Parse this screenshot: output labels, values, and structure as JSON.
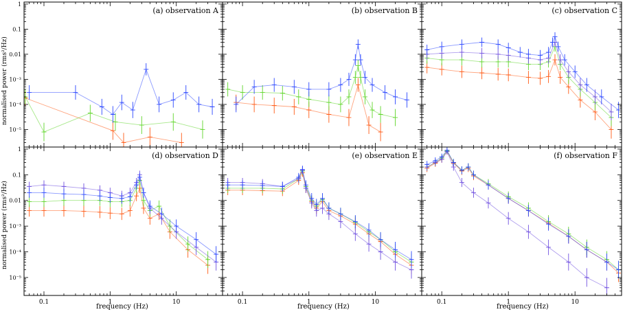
{
  "figure": {
    "ylabel": "normalised power (rms²/Hz)",
    "xlabel": "frequency (Hz)",
    "x_ticks": [
      "0.1",
      "1",
      "10"
    ],
    "y_ticks": [
      "1",
      "0.1",
      "0.01",
      "10⁻³",
      "10⁻⁴",
      "10⁻⁵"
    ],
    "colors": {
      "blue": "#2b47ff",
      "purple": "#7050e0",
      "green": "#5fd62a",
      "orange": "#ff5a14",
      "axis": "#000000"
    }
  },
  "chart_data": [
    {
      "type": "scatter",
      "title": "(a) observation A",
      "xscale": "log",
      "yscale": "log",
      "xlim": [
        0.05,
        50
      ],
      "ylim": [
        2e-06,
        1.2
      ],
      "series": [
        {
          "name": "blue",
          "x": [
            0.06,
            0.3,
            0.75,
            1.1,
            1.5,
            2.2,
            3.5,
            5.5,
            9,
            14,
            22,
            35
          ],
          "y": [
            0.0003,
            0.0003,
            8e-05,
            4e-05,
            0.00012,
            6e-05,
            0.0025,
            0.0001,
            0.00015,
            0.0003,
            0.0001,
            8e-05
          ]
        },
        {
          "name": "green",
          "x": [
            0.052,
            0.1,
            0.5,
            1.2,
            3,
            9,
            25
          ],
          "y": [
            0.0002,
            8e-06,
            4.5e-05,
            2e-05,
            1.5e-05,
            2e-05,
            1e-05
          ]
        },
        {
          "name": "orange",
          "x": [
            0.052,
            1.1,
            1.6,
            4,
            12
          ],
          "y": [
            0.00018,
            9e-06,
            3e-06,
            5e-06,
            3e-06
          ]
        }
      ]
    },
    {
      "type": "scatter",
      "title": "(b) observation B",
      "xscale": "log",
      "yscale": "log",
      "xlim": [
        0.05,
        50
      ],
      "ylim": [
        2e-06,
        1.2
      ],
      "series": [
        {
          "name": "blue",
          "x": [
            0.08,
            0.15,
            0.3,
            0.6,
            1,
            2,
            3,
            4,
            5,
            5.5,
            6,
            7,
            9,
            14,
            20,
            30
          ],
          "y": [
            0.0001,
            0.0005,
            0.0006,
            0.0005,
            0.0004,
            0.0004,
            0.0006,
            0.001,
            0.006,
            0.025,
            0.006,
            0.0012,
            0.0006,
            0.0003,
            0.0002,
            0.00015
          ]
        },
        {
          "name": "green",
          "x": [
            0.06,
            0.1,
            0.2,
            0.4,
            0.7,
            1,
            2,
            3,
            4,
            5,
            5.5,
            6,
            7,
            9,
            12,
            20
          ],
          "y": [
            0.0004,
            0.0003,
            0.0003,
            0.00028,
            0.0002,
            0.00016,
            0.00012,
            0.0001,
            0.0002,
            0.0012,
            0.0035,
            0.0012,
            0.0002,
            6e-05,
            4e-05,
            3e-05
          ]
        },
        {
          "name": "orange",
          "x": [
            0.08,
            0.15,
            0.3,
            0.6,
            1,
            2,
            4,
            5.5,
            8,
            12
          ],
          "y": [
            0.00012,
            0.0001,
            9e-05,
            8e-05,
            6e-05,
            4e-05,
            3e-05,
            0.0006,
            1.5e-05,
            8e-06
          ]
        }
      ]
    },
    {
      "type": "scatter",
      "title": "(c) observation C",
      "xscale": "log",
      "yscale": "log",
      "xlim": [
        0.05,
        50
      ],
      "ylim": [
        2e-06,
        1.2
      ],
      "series": [
        {
          "name": "blue",
          "x": [
            0.06,
            0.1,
            0.2,
            0.4,
            0.7,
            1,
            1.5,
            2,
            3,
            4,
            4.6,
            5,
            5.6,
            7,
            10,
            15,
            25,
            45
          ],
          "y": [
            0.015,
            0.02,
            0.025,
            0.03,
            0.025,
            0.018,
            0.012,
            0.01,
            0.009,
            0.012,
            0.03,
            0.05,
            0.02,
            0.006,
            0.002,
            0.0006,
            0.0002,
            6e-05
          ]
        },
        {
          "name": "purple",
          "x": [
            0.06,
            0.1,
            0.2,
            0.4,
            0.7,
            1,
            2,
            3,
            4,
            5,
            6,
            8,
            12,
            20,
            35
          ],
          "y": [
            0.01,
            0.011,
            0.012,
            0.011,
            0.01,
            0.009,
            0.007,
            0.006,
            0.007,
            0.03,
            0.006,
            0.002,
            0.0006,
            0.0002,
            5e-05
          ]
        },
        {
          "name": "green",
          "x": [
            0.06,
            0.1,
            0.2,
            0.4,
            0.7,
            1,
            2,
            3,
            4,
            5,
            6,
            8,
            12,
            20,
            35
          ],
          "y": [
            0.007,
            0.006,
            0.006,
            0.005,
            0.005,
            0.005,
            0.004,
            0.004,
            0.005,
            0.02,
            0.004,
            0.0012,
            0.0004,
            0.00012,
            3e-05
          ]
        },
        {
          "name": "orange",
          "x": [
            0.06,
            0.1,
            0.2,
            0.4,
            0.7,
            1,
            2,
            3,
            4,
            5,
            6,
            8,
            12,
            20,
            35
          ],
          "y": [
            0.003,
            0.0025,
            0.002,
            0.0018,
            0.0016,
            0.0015,
            0.0012,
            0.0011,
            0.0013,
            0.006,
            0.0012,
            0.0005,
            0.00015,
            5e-05,
            1e-05
          ]
        }
      ]
    },
    {
      "type": "scatter",
      "title": "(d) observation D",
      "xscale": "log",
      "yscale": "log",
      "xlim": [
        0.05,
        50
      ],
      "ylim": [
        2e-06,
        1.2
      ],
      "series": [
        {
          "name": "purple",
          "x": [
            0.06,
            0.1,
            0.2,
            0.4,
            0.7,
            1,
            1.5,
            2,
            2.5,
            2.8,
            3.2,
            4,
            6,
            10,
            20,
            40
          ],
          "y": [
            0.035,
            0.04,
            0.035,
            0.03,
            0.025,
            0.02,
            0.015,
            0.02,
            0.05,
            0.1,
            0.02,
            0.005,
            0.002,
            0.0006,
            0.00015,
            4e-05
          ]
        },
        {
          "name": "blue",
          "x": [
            0.06,
            0.1,
            0.2,
            0.4,
            0.7,
            1,
            1.5,
            2,
            2.5,
            2.8,
            3.2,
            4,
            6,
            10,
            20,
            40
          ],
          "y": [
            0.02,
            0.02,
            0.018,
            0.017,
            0.015,
            0.013,
            0.012,
            0.014,
            0.04,
            0.08,
            0.02,
            0.006,
            0.003,
            0.001,
            0.0003,
            8e-05
          ]
        },
        {
          "name": "green",
          "x": [
            0.06,
            0.1,
            0.2,
            0.4,
            0.7,
            1,
            1.5,
            2,
            2.5,
            2.8,
            3.2,
            4,
            5.5,
            8,
            15,
            30
          ],
          "y": [
            0.009,
            0.009,
            0.01,
            0.01,
            0.01,
            0.009,
            0.009,
            0.01,
            0.03,
            0.06,
            0.01,
            0.004,
            0.006,
            0.001,
            0.0002,
            5e-05
          ]
        },
        {
          "name": "orange",
          "x": [
            0.06,
            0.1,
            0.2,
            0.4,
            0.7,
            1,
            1.5,
            2,
            2.5,
            2.8,
            3.2,
            4,
            5.5,
            8,
            15,
            30
          ],
          "y": [
            0.004,
            0.004,
            0.004,
            0.0038,
            0.0035,
            0.0032,
            0.003,
            0.004,
            0.015,
            0.03,
            0.005,
            0.002,
            0.003,
            0.0006,
            0.00012,
            3e-05
          ]
        }
      ]
    },
    {
      "type": "scatter",
      "title": "(e) observation E",
      "xscale": "log",
      "yscale": "log",
      "xlim": [
        0.05,
        50
      ],
      "ylim": [
        2e-06,
        1.2
      ],
      "series": [
        {
          "name": "purple",
          "x": [
            0.06,
            0.1,
            0.2,
            0.4,
            0.7,
            0.8,
            0.9,
            1.1,
            1.3,
            1.6,
            2,
            3,
            5,
            8,
            12,
            20,
            35
          ],
          "y": [
            0.05,
            0.05,
            0.045,
            0.035,
            0.07,
            0.15,
            0.03,
            0.008,
            0.004,
            0.005,
            0.003,
            0.0015,
            0.0005,
            0.0002,
            0.0001,
            4e-05,
            2e-05
          ]
        },
        {
          "name": "blue",
          "x": [
            0.06,
            0.1,
            0.2,
            0.4,
            0.7,
            0.8,
            0.9,
            1.1,
            1.3,
            1.6,
            2,
            3,
            5,
            8,
            12,
            20,
            35
          ],
          "y": [
            0.04,
            0.04,
            0.038,
            0.035,
            0.08,
            0.16,
            0.04,
            0.012,
            0.007,
            0.012,
            0.005,
            0.003,
            0.0015,
            0.0007,
            0.0003,
            0.00012,
            5e-05
          ]
        },
        {
          "name": "green",
          "x": [
            0.06,
            0.1,
            0.2,
            0.4,
            0.7,
            0.8,
            0.9,
            1.1,
            1.3,
            1.6,
            2,
            3,
            5,
            8,
            12,
            20,
            35
          ],
          "y": [
            0.03,
            0.03,
            0.03,
            0.028,
            0.07,
            0.14,
            0.035,
            0.01,
            0.006,
            0.011,
            0.005,
            0.003,
            0.0014,
            0.0006,
            0.0003,
            0.0001,
            4e-05
          ]
        },
        {
          "name": "orange",
          "x": [
            0.06,
            0.1,
            0.2,
            0.4,
            0.7,
            0.8,
            0.9,
            1.1,
            1.3,
            1.6,
            2,
            3,
            5,
            8,
            12,
            20,
            35
          ],
          "y": [
            0.025,
            0.025,
            0.024,
            0.023,
            0.06,
            0.12,
            0.03,
            0.009,
            0.005,
            0.009,
            0.004,
            0.0025,
            0.0012,
            0.0005,
            0.00025,
            8e-05,
            3e-05
          ]
        }
      ]
    },
    {
      "type": "scatter",
      "title": "(f) observation F",
      "xscale": "log",
      "yscale": "log",
      "xlim": [
        0.05,
        50
      ],
      "ylim": [
        2e-06,
        1.2
      ],
      "series": [
        {
          "name": "purple",
          "x": [
            0.06,
            0.08,
            0.1,
            0.12,
            0.15,
            0.2,
            0.3,
            0.5,
            1,
            2,
            4,
            8,
            15,
            30
          ],
          "y": [
            0.2,
            0.3,
            0.4,
            0.8,
            0.2,
            0.05,
            0.02,
            0.008,
            0.002,
            0.0006,
            0.00015,
            4e-05,
            1e-05,
            4e-06
          ]
        },
        {
          "name": "blue",
          "x": [
            0.06,
            0.08,
            0.1,
            0.12,
            0.15,
            0.2,
            0.25,
            0.3,
            0.5,
            1,
            2,
            4,
            8,
            15,
            30,
            45
          ],
          "y": [
            0.25,
            0.35,
            0.5,
            0.9,
            0.3,
            0.15,
            0.2,
            0.1,
            0.04,
            0.012,
            0.004,
            0.0012,
            0.0004,
            0.00012,
            4e-05,
            2e-05
          ]
        },
        {
          "name": "green",
          "x": [
            0.06,
            0.08,
            0.1,
            0.12,
            0.15,
            0.2,
            0.25,
            0.3,
            0.5,
            1,
            2,
            4,
            8,
            15,
            30,
            45
          ],
          "y": [
            0.2,
            0.3,
            0.45,
            0.85,
            0.3,
            0.15,
            0.2,
            0.1,
            0.045,
            0.014,
            0.005,
            0.0015,
            0.0005,
            0.00015,
            5e-05,
            2e-05
          ]
        },
        {
          "name": "orange",
          "x": [
            0.06,
            0.08,
            0.1,
            0.12,
            0.15,
            0.2,
            0.25,
            0.3,
            0.5,
            1,
            2,
            4,
            8,
            15,
            30,
            45
          ],
          "y": [
            0.18,
            0.28,
            0.4,
            0.8,
            0.28,
            0.14,
            0.18,
            0.09,
            0.04,
            0.012,
            0.004,
            0.0013,
            0.0004,
            0.00012,
            4e-05,
            1.5e-05
          ]
        }
      ]
    }
  ]
}
